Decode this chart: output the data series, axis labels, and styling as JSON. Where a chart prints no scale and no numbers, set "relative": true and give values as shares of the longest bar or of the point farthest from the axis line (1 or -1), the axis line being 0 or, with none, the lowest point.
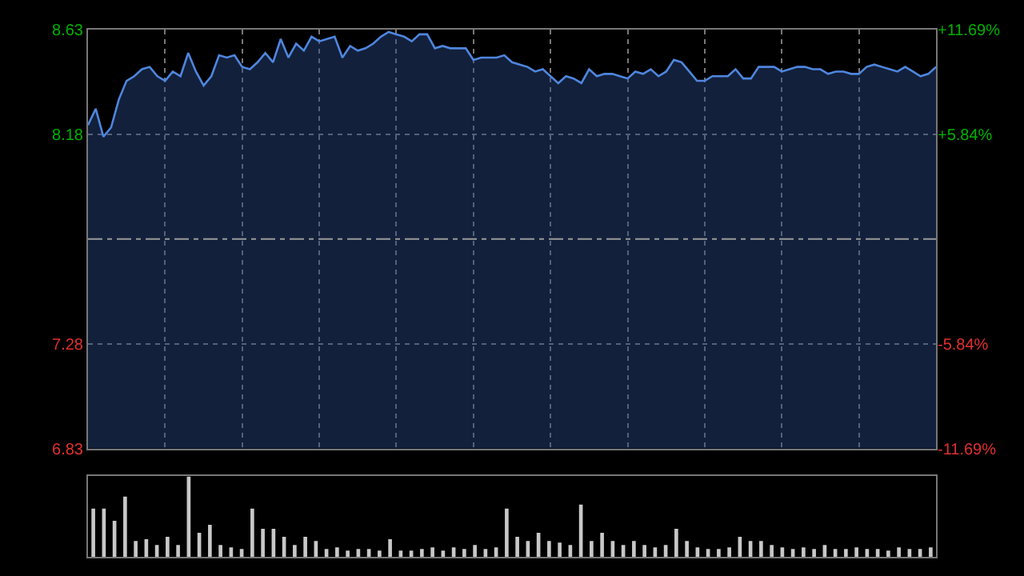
{
  "chart_data": [
    {
      "type": "area",
      "categories": [
        null,
        null,
        null,
        null,
        null,
        null,
        null,
        null,
        null,
        null,
        null,
        null,
        null,
        null,
        null,
        null,
        null,
        null,
        null,
        null,
        null,
        null,
        null,
        null,
        null,
        null,
        null,
        null,
        null,
        null,
        null,
        null,
        null,
        null,
        null,
        null,
        null,
        null,
        null,
        null,
        null,
        null,
        null,
        null,
        null,
        null,
        null,
        null,
        null,
        null,
        null,
        null,
        null,
        null,
        null,
        null,
        null,
        null,
        null,
        null,
        null,
        null,
        null,
        null,
        null,
        null,
        null,
        null,
        null,
        null,
        null,
        null,
        null,
        null,
        null,
        null,
        null,
        null,
        null,
        null,
        null,
        null,
        null,
        null,
        null,
        null,
        null,
        null,
        null,
        null,
        null,
        null,
        null,
        null,
        null,
        null,
        null,
        null,
        null,
        null,
        null,
        null,
        null,
        null,
        null,
        null,
        null,
        null,
        null,
        null,
        null
      ],
      "ylim": [
        6.83,
        8.63
      ],
      "yticks": [
        6.83,
        7.28,
        8.18,
        8.63
      ],
      "y2lim": [
        -11.69,
        11.69
      ],
      "y2ticks": [
        {
          "value": -11.69,
          "label": "-11.69%"
        },
        {
          "value": -5.84,
          "label": "-5.84%"
        },
        {
          "value": 5.84,
          "label": "+5.84%"
        },
        {
          "value": 11.69,
          "label": "+11.69%"
        }
      ],
      "grid": true,
      "tick_labels": "y",
      "legend": false,
      "ref_lines": [
        {
          "axis": "y",
          "value": 7.73,
          "color": "#9a9a9a",
          "line_style": "dashed"
        }
      ],
      "series": [
        {
          "color": "#4f86de",
          "values": [
            8.22,
            8.29,
            8.17,
            8.21,
            8.33,
            8.41,
            8.43,
            8.46,
            8.47,
            8.43,
            8.41,
            8.45,
            8.43,
            8.53,
            8.45,
            8.39,
            8.43,
            8.52,
            8.51,
            8.52,
            8.47,
            8.46,
            8.49,
            8.53,
            8.49,
            8.59,
            8.51,
            8.57,
            8.54,
            8.6,
            8.58,
            8.59,
            8.6,
            8.51,
            8.56,
            8.54,
            8.55,
            8.57,
            8.6,
            8.62,
            8.61,
            8.6,
            8.58,
            8.61,
            8.61,
            8.55,
            8.56,
            8.55,
            8.55,
            8.55,
            8.5,
            8.51,
            8.51,
            8.51,
            8.52,
            8.49,
            8.48,
            8.47,
            8.45,
            8.46,
            8.43,
            8.4,
            8.43,
            8.42,
            8.4,
            8.46,
            8.43,
            8.44,
            8.44,
            8.43,
            8.42,
            8.45,
            8.44,
            8.46,
            8.43,
            8.45,
            8.5,
            8.49,
            8.45,
            8.41,
            8.41,
            8.43,
            8.43,
            8.43,
            8.46,
            8.42,
            8.42,
            8.47,
            8.47,
            8.47,
            8.45,
            8.46,
            8.47,
            8.47,
            8.46,
            8.46,
            8.44,
            8.45,
            8.45,
            8.44,
            8.44,
            8.47,
            8.48,
            8.47,
            8.46,
            8.45,
            8.47,
            8.45,
            8.43,
            8.44,
            8.47
          ]
        }
      ]
    },
    {
      "type": "bar",
      "relative": true,
      "tick_labels": false,
      "legend": false,
      "categories": [
        null,
        null,
        null,
        null,
        null,
        null,
        null,
        null,
        null,
        null,
        null,
        null,
        null,
        null,
        null,
        null,
        null,
        null,
        null,
        null,
        null,
        null,
        null,
        null,
        null,
        null,
        null,
        null,
        null,
        null,
        null,
        null,
        null,
        null,
        null,
        null,
        null,
        null,
        null,
        null,
        null,
        null,
        null,
        null,
        null,
        null,
        null,
        null,
        null,
        null,
        null,
        null,
        null,
        null,
        null,
        null,
        null,
        null,
        null,
        null,
        null,
        null,
        null,
        null,
        null,
        null,
        null,
        null,
        null,
        null,
        null,
        null,
        null,
        null,
        null,
        null,
        null,
        null,
        null,
        null
      ],
      "series": [
        {
          "color": "#c8c8c8",
          "values": [
            0.6,
            0.6,
            0.45,
            0.75,
            0.2,
            0.22,
            0.15,
            0.25,
            0.15,
            1.0,
            0.3,
            0.4,
            0.15,
            0.12,
            0.1,
            0.6,
            0.35,
            0.35,
            0.25,
            0.15,
            0.25,
            0.2,
            0.1,
            0.12,
            0.08,
            0.1,
            0.1,
            0.08,
            0.22,
            0.08,
            0.08,
            0.1,
            0.12,
            0.08,
            0.12,
            0.1,
            0.15,
            0.1,
            0.12,
            0.6,
            0.25,
            0.2,
            0.3,
            0.2,
            0.18,
            0.15,
            0.65,
            0.2,
            0.3,
            0.2,
            0.15,
            0.2,
            0.15,
            0.12,
            0.15,
            0.35,
            0.2,
            0.12,
            0.1,
            0.1,
            0.12,
            0.25,
            0.2,
            0.2,
            0.15,
            0.12,
            0.1,
            0.12,
            0.1,
            0.15,
            0.1,
            0.1,
            0.12,
            0.1,
            0.1,
            0.08,
            0.12,
            0.1,
            0.1,
            0.12
          ]
        }
      ]
    }
  ]
}
